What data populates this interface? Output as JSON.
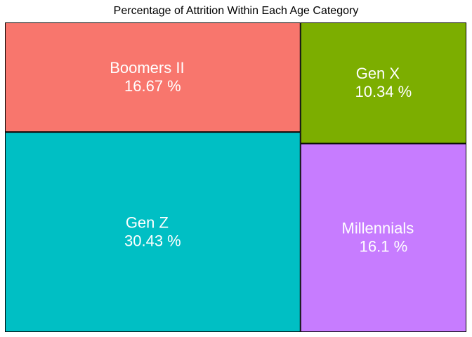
{
  "chart_data": {
    "type": "treemap",
    "title": "Percentage of Attrition Within Each Age Category",
    "tiles": [
      {
        "name": "Boomers II",
        "value": 16.67,
        "label": "16.67 %",
        "color": "#F8766D"
      },
      {
        "name": "Gen X",
        "value": 10.34,
        "label": "10.34 %",
        "color": "#7CAE00"
      },
      {
        "name": "Gen Z",
        "value": 30.43,
        "label": "30.43 %",
        "color": "#00BFC4"
      },
      {
        "name": "Millennials",
        "value": 16.1,
        "label": "16.1 %",
        "color": "#C77CFF"
      }
    ],
    "border_color": "#000000"
  }
}
